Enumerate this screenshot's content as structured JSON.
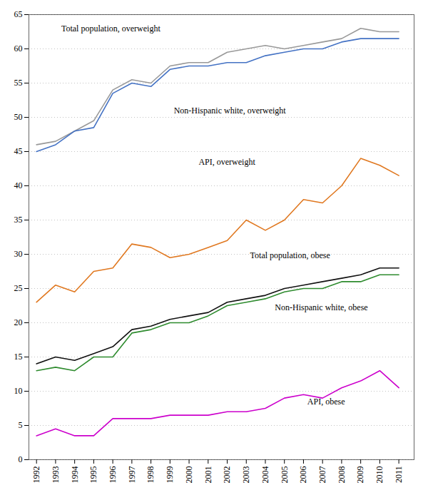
{
  "chart_data": {
    "type": "line",
    "x": [
      1992,
      1993,
      1994,
      1995,
      1996,
      1997,
      1998,
      1999,
      2000,
      2001,
      2002,
      2003,
      2004,
      2005,
      2006,
      2007,
      2008,
      2009,
      2010,
      2011
    ],
    "series": [
      {
        "name": "Total population, overweight",
        "color": "#999999",
        "label_position": [
          1993.3,
          63.0
        ],
        "values": [
          46.0,
          46.5,
          48.0,
          49.5,
          54.0,
          55.5,
          55.0,
          57.5,
          58.0,
          58.0,
          59.5,
          60.0,
          60.5,
          60.0,
          60.5,
          61.0,
          61.5,
          63.0,
          62.5,
          62.5
        ]
      },
      {
        "name": "Non-Hispanic white, overweight",
        "color": "#4472c4",
        "label_position": [
          1999.2,
          51.0
        ],
        "values": [
          45.0,
          46.0,
          48.0,
          48.5,
          53.5,
          55.0,
          54.5,
          57.0,
          57.5,
          57.5,
          58.0,
          58.0,
          59.0,
          59.5,
          60.0,
          60.0,
          61.0,
          61.5,
          61.5,
          61.5
        ]
      },
      {
        "name": "API, overweight",
        "color": "#e07820",
        "label_position": [
          2000.5,
          43.5
        ],
        "values": [
          23.0,
          25.5,
          24.5,
          27.5,
          28.0,
          31.5,
          31.0,
          29.5,
          30.0,
          31.0,
          32.0,
          35.0,
          33.5,
          35.0,
          38.0,
          37.5,
          40.0,
          44.0,
          43.0,
          41.5
        ]
      },
      {
        "name": "Total population, obese",
        "color": "#111111",
        "label_position": [
          2003.2,
          29.8
        ],
        "values": [
          14.0,
          15.0,
          14.5,
          15.5,
          16.5,
          19.0,
          19.5,
          20.5,
          21.0,
          21.5,
          23.0,
          23.5,
          24.0,
          25.0,
          25.5,
          26.0,
          26.5,
          27.0,
          28.0,
          28.0
        ]
      },
      {
        "name": "Non-Hispanic white, obese",
        "color": "#2e8b2e",
        "label_position": [
          2004.5,
          22.2
        ],
        "values": [
          13.0,
          13.5,
          13.0,
          15.0,
          15.0,
          18.5,
          19.0,
          20.0,
          20.0,
          21.0,
          22.5,
          23.0,
          23.5,
          24.5,
          25.0,
          25.0,
          26.0,
          26.0,
          27.0,
          27.0
        ]
      },
      {
        "name": "API, obese",
        "color": "#cc00cc",
        "label_position": [
          2006.2,
          8.5
        ],
        "values": [
          3.5,
          4.5,
          3.5,
          3.5,
          6.0,
          6.0,
          6.0,
          6.5,
          6.5,
          6.5,
          7.0,
          7.0,
          7.5,
          9.0,
          9.5,
          9.0,
          10.5,
          11.5,
          13.0,
          10.5
        ]
      }
    ],
    "xlim": [
      1991.6,
      2011.8
    ],
    "xticks": [
      1992,
      1993,
      1994,
      1995,
      1996,
      1997,
      1998,
      1999,
      2000,
      2001,
      2002,
      2003,
      2004,
      2005,
      2006,
      2007,
      2008,
      2009,
      2010,
      2011
    ],
    "ylim": [
      0,
      65
    ],
    "yticks": [
      0,
      5,
      10,
      15,
      20,
      25,
      30,
      35,
      40,
      45,
      50,
      55,
      60,
      65
    ],
    "grid": true
  }
}
